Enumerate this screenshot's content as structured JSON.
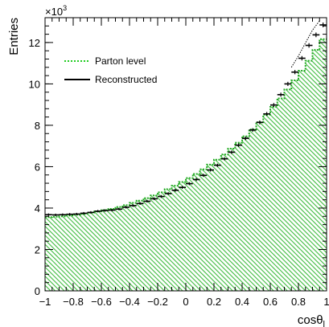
{
  "chart_data": {
    "type": "histogram",
    "title": "",
    "xlabel": "cosθ",
    "xlabel_subscript": "l",
    "ylabel": "Entries",
    "y_multiplier_label": "×10",
    "y_multiplier_exponent": "3",
    "xlim": [
      -1,
      1
    ],
    "ylim": [
      0,
      13200
    ],
    "x_ticks": [
      -1,
      -0.8,
      -0.6,
      -0.4,
      -0.2,
      0,
      0.2,
      0.4,
      0.6,
      0.8,
      1
    ],
    "x_tick_labels": [
      "−1",
      "−0.8",
      "−0.6",
      "−0.4",
      "−0.2",
      "0",
      "0.2",
      "0.4",
      "0.6",
      "0.8",
      "1"
    ],
    "y_ticks": [
      0,
      2000,
      4000,
      6000,
      8000,
      10000,
      12000
    ],
    "y_tick_labels": [
      "0",
      "2",
      "4",
      "6",
      "8",
      "10",
      "12"
    ],
    "legend_placement": "top-left",
    "bin_edges": [
      -1.0,
      -0.95,
      -0.9,
      -0.85,
      -0.8,
      -0.75,
      -0.7,
      -0.65,
      -0.6,
      -0.55,
      -0.5,
      -0.45,
      -0.4,
      -0.35,
      -0.3,
      -0.25,
      -0.2,
      -0.15,
      -0.1,
      -0.05,
      0.0,
      0.05,
      0.1,
      0.15,
      0.2,
      0.25,
      0.3,
      0.35,
      0.4,
      0.45,
      0.5,
      0.55,
      0.6,
      0.65,
      0.7,
      0.75,
      0.8,
      0.85,
      0.9,
      0.95,
      1.0
    ],
    "series": [
      {
        "name": "Parton level",
        "style": "dotted-line-hatched-fill",
        "color": "#22aa22",
        "fill_color": "#33bb33",
        "values": [
          3560,
          3580,
          3600,
          3640,
          3680,
          3720,
          3780,
          3840,
          3900,
          3960,
          4050,
          4140,
          4250,
          4360,
          4480,
          4610,
          4760,
          4910,
          5080,
          5260,
          5450,
          5650,
          5870,
          6100,
          6340,
          6590,
          6870,
          7160,
          7470,
          7800,
          8150,
          8510,
          8890,
          9300,
          9730,
          10170,
          10640,
          11120,
          11640,
          12160
        ]
      },
      {
        "name": "Reconstructed",
        "style": "points-with-error-bars",
        "color": "#000000",
        "values": [
          3680,
          3670,
          3680,
          3700,
          3710,
          3750,
          3790,
          3850,
          3880,
          3900,
          3950,
          4040,
          4120,
          4220,
          4330,
          4450,
          4560,
          4700,
          4860,
          5000,
          5180,
          5380,
          5580,
          5840,
          6070,
          6380,
          6700,
          7040,
          7370,
          7770,
          8140,
          8550,
          8980,
          9480,
          10000,
          10570,
          11240,
          11860,
          12370,
          12850
        ],
        "errors": [
          60,
          60,
          60,
          60,
          60,
          60,
          60,
          60,
          60,
          60,
          60,
          60,
          65,
          65,
          65,
          65,
          70,
          70,
          70,
          70,
          72,
          72,
          75,
          75,
          78,
          80,
          82,
          84,
          86,
          88,
          90,
          92,
          95,
          98,
          100,
          103,
          106,
          109,
          112,
          115
        ]
      }
    ],
    "reference_curve": {
      "style": "dotted",
      "color": "#000000",
      "points": [
        [
          0.75,
          10800
        ],
        [
          0.8,
          11350
        ],
        [
          0.85,
          11980
        ],
        [
          0.9,
          12600
        ],
        [
          0.95,
          13050
        ]
      ]
    }
  }
}
